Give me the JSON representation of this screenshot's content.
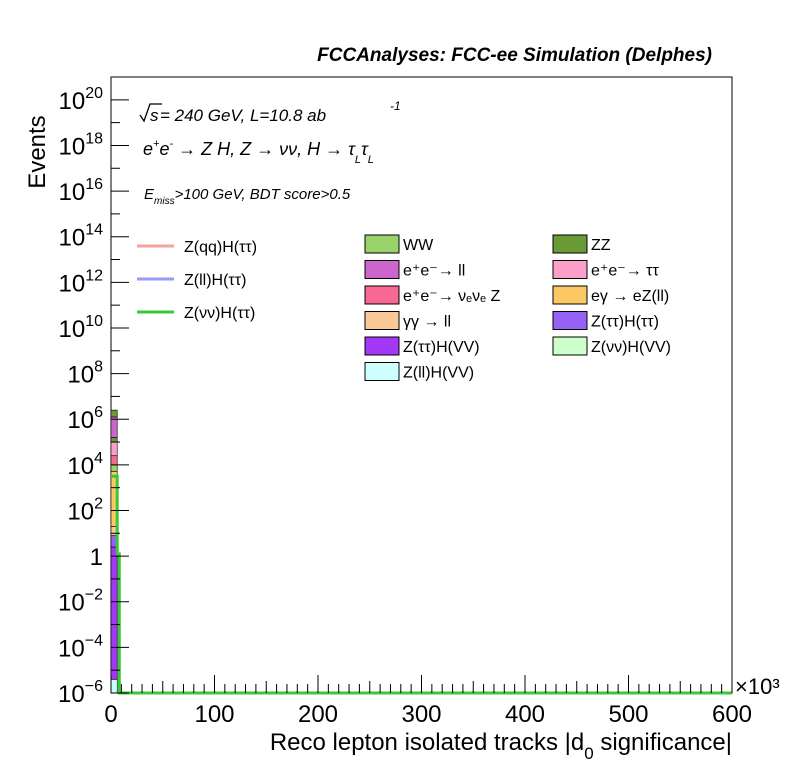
{
  "header": {
    "title": "FCCAnalyses: FCC-ee Simulation (Delphes)"
  },
  "annotations": {
    "energy_sqrt": "s",
    "energy_rest": " = 240 GeV, L=10.8 ab",
    "lumi_exp": "-1",
    "process": [
      "e",
      "+",
      "e",
      "-",
      " → Z H, Z  → νν, H  → τ",
      "L",
      "τ",
      "L"
    ],
    "cut_E": "E",
    "cut_sub": "miss",
    "cut_rest": ">100 GeV, BDT score>0.5"
  },
  "legend": {
    "signal": [
      {
        "label": "Z(qq)H(ττ)",
        "color": "#f4a3a3"
      },
      {
        "label": "Z(ll)H(ττ)",
        "color": "#9a9af8"
      },
      {
        "label": "Z(νν)H(ττ)",
        "color": "#3ac83a"
      }
    ],
    "backgrounds_col1": [
      {
        "label": "WW",
        "color": "#99d269"
      },
      {
        "label": "e⁺e⁻→ ll",
        "color": "#cc66cc"
      },
      {
        "label": "e⁺e⁻→ νₑνₑ Z",
        "color": "#f76896"
      },
      {
        "label": "γγ → ll",
        "color": "#fbc997"
      },
      {
        "label": "Z(ττ)H(VV)",
        "color": "#a238f5"
      },
      {
        "label": "Z(ll)H(VV)",
        "color": "#ccffff"
      }
    ],
    "backgrounds_col2": [
      {
        "label": "ZZ",
        "color": "#6a9a35"
      },
      {
        "label": "e⁺e⁻→ ττ",
        "color": "#fba0cb"
      },
      {
        "label": "eγ → eZ(ll)",
        "color": "#fbc864"
      },
      {
        "label": "Z(ττ)H(ττ)",
        "color": "#9661f5"
      },
      {
        "label": "Z(νν)H(VV)",
        "color": "#ccffcc"
      }
    ]
  },
  "chart_data": {
    "type": "bar",
    "title": "FCCAnalyses: FCC-ee Simulation (Delphes)",
    "xlabel": "Reco lepton isolated tracks |d0 significance|",
    "ylabel": "Events",
    "x_multiplier": "×10³",
    "xlim": [
      0,
      600
    ],
    "ylim_log10": [
      -6,
      21
    ],
    "y_scale": "log",
    "x_ticks": [
      "0",
      "100",
      "200",
      "300",
      "400",
      "500",
      "600"
    ],
    "y_ticks": [
      {
        "exp": -6,
        "base": "10",
        "sup": "−6"
      },
      {
        "exp": -4,
        "base": "10",
        "sup": "−4"
      },
      {
        "exp": -2,
        "base": "10",
        "sup": "−2"
      },
      {
        "exp": 0,
        "base": "1",
        "sup": ""
      },
      {
        "exp": 2,
        "base": "10",
        "sup": "2"
      },
      {
        "exp": 4,
        "base": "10",
        "sup": "4"
      },
      {
        "exp": 6,
        "base": "10",
        "sup": "6"
      },
      {
        "exp": 8,
        "base": "10",
        "sup": "8"
      },
      {
        "exp": 10,
        "base": "10",
        "sup": "10"
      },
      {
        "exp": 12,
        "base": "10",
        "sup": "12"
      },
      {
        "exp": 14,
        "base": "10",
        "sup": "14"
      },
      {
        "exp": 16,
        "base": "10",
        "sup": "16"
      },
      {
        "exp": 18,
        "base": "10",
        "sup": "18"
      },
      {
        "exp": 20,
        "base": "10",
        "sup": "20"
      }
    ],
    "stack_bin": {
      "x_range": [
        0,
        6
      ],
      "segments": [
        {
          "name": "Z(ll)H(VV)",
          "bottom_exp": -6,
          "top_exp": -5.4,
          "color": "#ccffff"
        },
        {
          "name": "Z(ττ)H(VV)",
          "bottom_exp": -5.4,
          "top_exp": 0.4,
          "color": "#a238f5"
        },
        {
          "name": "Z(ττ)H(ττ)",
          "bottom_exp": 0.4,
          "top_exp": 0.9,
          "color": "#9661f5"
        },
        {
          "name": "γγ → ll",
          "bottom_exp": 0.9,
          "top_exp": 1.3,
          "color": "#fbc997"
        },
        {
          "name": "eγ → eZ(ll)",
          "bottom_exp": 1.3,
          "top_exp": 3.7,
          "color": "#fbc864"
        },
        {
          "name": "WW",
          "bottom_exp": 3.7,
          "top_exp": 4.0,
          "color": "#99d269"
        },
        {
          "name": "e⁺e⁻→ νₑνₑ Z",
          "bottom_exp": 4.0,
          "top_exp": 4.4,
          "color": "#f76896"
        },
        {
          "name": "e⁺e⁻→ ττ",
          "bottom_exp": 4.4,
          "top_exp": 5.0,
          "color": "#fba0cb"
        },
        {
          "name": "ZZ",
          "bottom_exp": 5.0,
          "top_exp": 5.2,
          "color": "#6a9a35"
        },
        {
          "name": "e⁺e⁻→ ll",
          "bottom_exp": 5.2,
          "top_exp": 6.1,
          "color": "#cc66cc"
        },
        {
          "name": "ZZ top",
          "bottom_exp": 6.1,
          "top_exp": 6.4,
          "color": "#6a9a35"
        }
      ]
    },
    "signal_curve": {
      "name": "Z(νν)H(ττ)",
      "points": [
        [
          0,
          3.5
        ],
        [
          6,
          3.5
        ],
        [
          6,
          0.1
        ],
        [
          8,
          0.1
        ],
        [
          8,
          -6
        ],
        [
          600,
          -6
        ]
      ]
    }
  }
}
